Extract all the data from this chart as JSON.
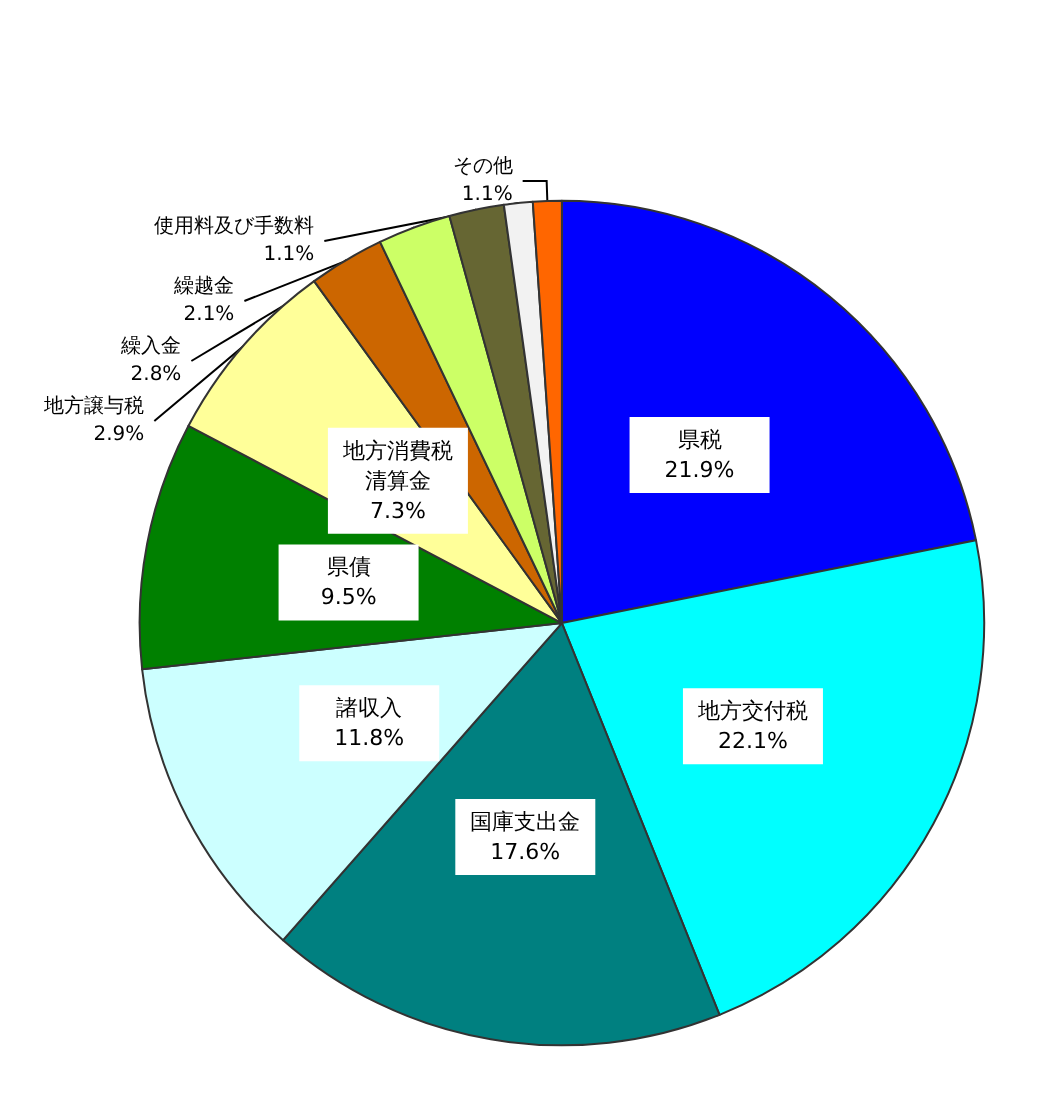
{
  "chart_data": {
    "type": "pie",
    "categories": [
      "県税",
      "地方交付税",
      "国庫支出金",
      "諸収入",
      "県債",
      "地方消費税清算金",
      "地方譲与税",
      "繰入金",
      "繰越金",
      "使用料及び手数料",
      "その他"
    ],
    "values": [
      21.9,
      22.1,
      17.6,
      11.8,
      9.5,
      7.3,
      2.9,
      2.8,
      2.1,
      1.1,
      1.1
    ],
    "value_labels": [
      "21.9%",
      "22.1%",
      "17.6%",
      "11.8%",
      "9.5%",
      "7.3%",
      "2.9%",
      "2.8%",
      "2.1%",
      "1.1%",
      "1.1%"
    ],
    "colors": [
      "#0000ff",
      "#00ffff",
      "#008080",
      "#ccffff",
      "#008000",
      "#ffff99",
      "#cc6600",
      "#ccff66",
      "#666633",
      "#f2f2f2",
      "#ff6600"
    ],
    "legend": false
  }
}
